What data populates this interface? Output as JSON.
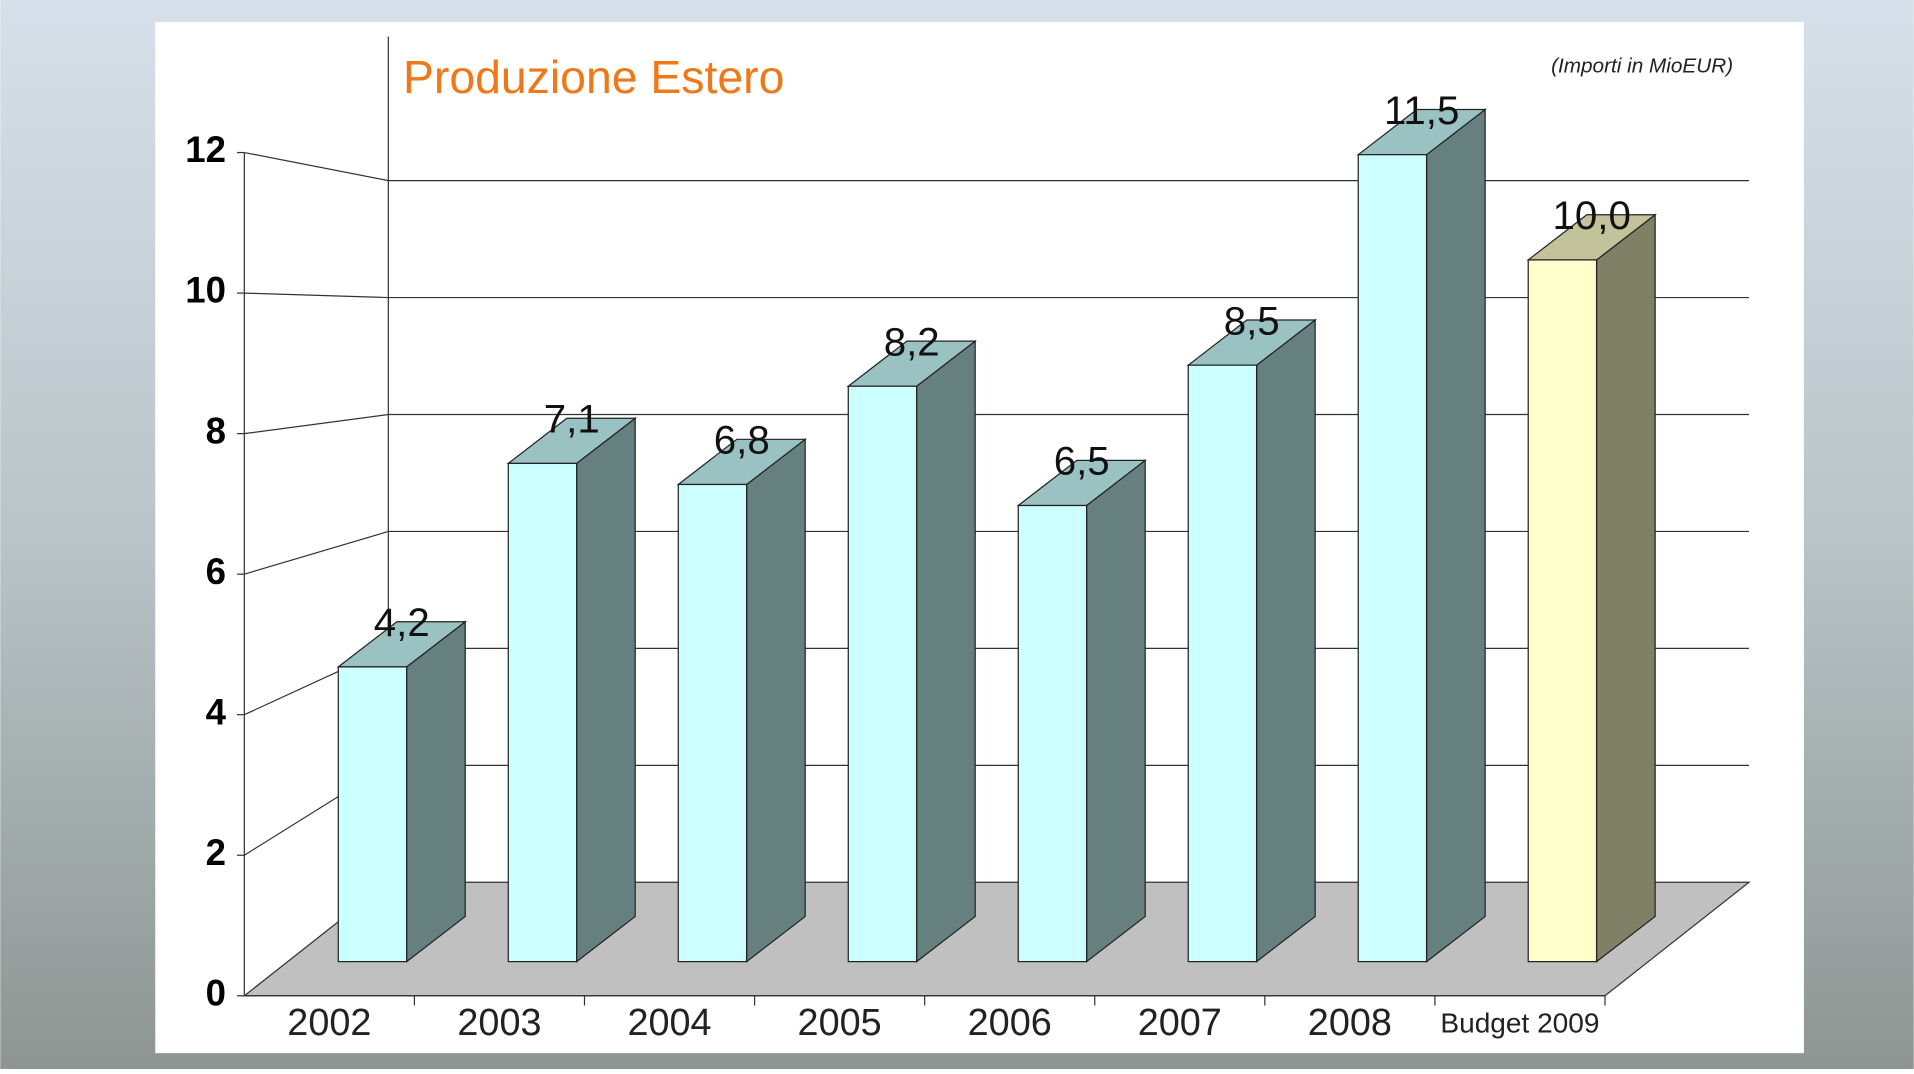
{
  "chart_data": {
    "type": "bar3d",
    "title": "Produzione Estero",
    "subtitle": "(Importi in MioEUR)",
    "categories": [
      "2002",
      "2003",
      "2004",
      "2005",
      "2006",
      "2007",
      "2008",
      "Budget 2009"
    ],
    "values": [
      4.2,
      7.1,
      6.8,
      8.2,
      6.5,
      8.5,
      11.5,
      10.0
    ],
    "value_labels": [
      "4,2",
      "7,1",
      "6,8",
      "8,2",
      "6,5",
      "8,5",
      "11,5",
      "10,0"
    ],
    "colors": [
      "#ccffff",
      "#ccffff",
      "#ccffff",
      "#ccffff",
      "#ccffff",
      "#ccffff",
      "#ccffff",
      "#ffffcc"
    ],
    "ylim": [
      0,
      12
    ],
    "yticks": [
      0,
      2,
      4,
      6,
      8,
      10,
      12
    ],
    "grid": true
  }
}
